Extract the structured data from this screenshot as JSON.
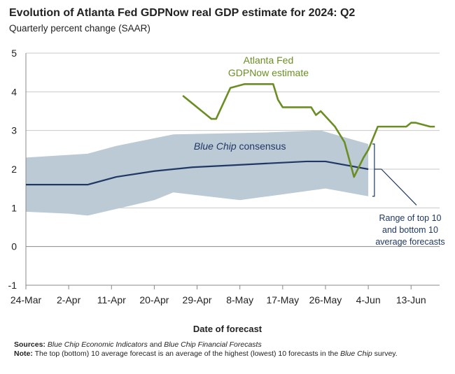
{
  "header": {
    "title": "Evolution of Atlanta Fed GDPNow real GDP estimate for 2024: Q2",
    "subtitle": "Quarterly percent change (SAAR)"
  },
  "footer": {
    "xlabel": "Date of forecast",
    "sources_label": "Sources:",
    "sources_part1": "Blue Chip Economic Indicators",
    "sources_part2": " and ",
    "sources_part3": "Blue Chip Financial Forecasts",
    "note_label": "Note:",
    "note_part1": " The top (bottom) 10 average forecast is an average of the highest (lowest) 10 forecasts in the ",
    "note_part2": "Blue Chip",
    "note_part3": " survey."
  },
  "colors": {
    "gdpnow": "#6b8e23",
    "bluechip": "#1f3864",
    "band": "#bccad6",
    "grid": "#c8c8c8",
    "annotation": "#1f3864"
  },
  "chart_data": {
    "type": "line",
    "x_tick_labels": [
      "24-Mar",
      "2-Apr",
      "11-Apr",
      "20-Apr",
      "29-Apr",
      "8-May",
      "17-May",
      "26-May",
      "4-Jun",
      "13-Jun"
    ],
    "x_ticks": [
      "2024-03-24",
      "2024-04-02",
      "2024-04-11",
      "2024-04-20",
      "2024-04-29",
      "2024-05-08",
      "2024-05-17",
      "2024-05-26",
      "2024-06-04",
      "2024-06-13"
    ],
    "xlim": [
      "2024-03-24",
      "2024-06-19"
    ],
    "ylim": [
      -1,
      5
    ],
    "y_ticks": [
      -1,
      0,
      1,
      2,
      3,
      4,
      5
    ],
    "grid": true,
    "xlabel": "Date of forecast",
    "ylabel": "",
    "series": [
      {
        "name": "Atlanta Fed GDPNow estimate",
        "label_lines": [
          "Atlanta Fed",
          "GDPNow estimate"
        ],
        "x": [
          "2024-04-26",
          "2024-04-28",
          "2024-04-30",
          "2024-05-01",
          "2024-05-02",
          "2024-05-03",
          "2024-05-06",
          "2024-05-09",
          "2024-05-15",
          "2024-05-16",
          "2024-05-17",
          "2024-05-23",
          "2024-05-24",
          "2024-05-25",
          "2024-05-28",
          "2024-05-30",
          "2024-06-01",
          "2024-06-03",
          "2024-06-04",
          "2024-06-05",
          "2024-06-06",
          "2024-06-07",
          "2024-06-12",
          "2024-06-13",
          "2024-06-14",
          "2024-06-17",
          "2024-06-18"
        ],
        "values": [
          3.9,
          3.7,
          3.5,
          3.4,
          3.3,
          3.3,
          4.1,
          4.2,
          4.2,
          3.8,
          3.6,
          3.6,
          3.4,
          3.5,
          3.1,
          2.7,
          1.8,
          2.3,
          2.5,
          2.8,
          3.1,
          3.1,
          3.1,
          3.2,
          3.2,
          3.1,
          3.1
        ]
      },
      {
        "name": "Blue Chip consensus",
        "x": [
          "2024-03-24",
          "2024-04-06",
          "2024-04-12",
          "2024-04-20",
          "2024-04-28",
          "2024-05-06",
          "2024-05-14",
          "2024-05-22",
          "2024-05-26",
          "2024-06-04"
        ],
        "values": [
          1.6,
          1.6,
          1.8,
          1.95,
          2.05,
          2.1,
          2.15,
          2.2,
          2.2,
          2.0
        ]
      },
      {
        "name": "Top 10 average",
        "x": [
          "2024-03-24",
          "2024-04-06",
          "2024-04-12",
          "2024-04-20",
          "2024-04-24",
          "2024-05-14",
          "2024-05-25",
          "2024-06-04"
        ],
        "values": [
          2.3,
          2.4,
          2.6,
          2.8,
          2.9,
          2.95,
          3.0,
          2.65
        ]
      },
      {
        "name": "Bottom 10 average",
        "x": [
          "2024-03-24",
          "2024-04-02",
          "2024-04-06",
          "2024-04-20",
          "2024-04-24",
          "2024-05-08",
          "2024-05-26",
          "2024-06-04"
        ],
        "values": [
          0.9,
          0.85,
          0.8,
          1.2,
          1.4,
          1.2,
          1.5,
          1.3
        ]
      }
    ],
    "annotations": {
      "bluechip_label_italic": "Blue Chip",
      "bluechip_label_rest": " consensus",
      "range_label_lines": [
        "Range of top 10",
        "and bottom 10",
        "average forecasts"
      ]
    }
  }
}
